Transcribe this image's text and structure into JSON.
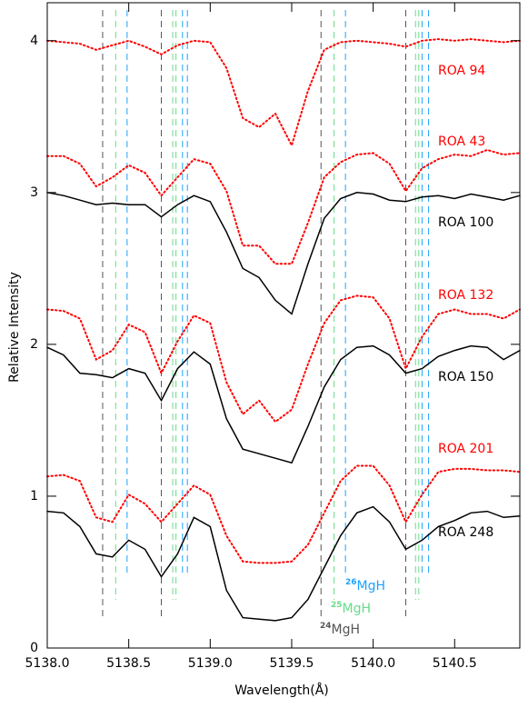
{
  "chart_data": {
    "type": "line",
    "x_label": "Wavelength(Å)",
    "y_label": "Relative Intensity",
    "xlim": [
      5138.0,
      5140.9
    ],
    "ylim": [
      0,
      4.25
    ],
    "xticks": [
      {
        "value": 5138.0,
        "label": "5138.0"
      },
      {
        "value": 5138.5,
        "label": "5138.5"
      },
      {
        "value": 5139.0,
        "label": "5139.0"
      },
      {
        "value": 5139.5,
        "label": "5139.5"
      },
      {
        "value": 5140.0,
        "label": "5140.0"
      },
      {
        "value": 5140.5,
        "label": "5140.5"
      }
    ],
    "yticks": [
      0,
      1,
      2,
      3,
      4
    ],
    "x": [
      5138.0,
      5138.1,
      5138.2,
      5138.3,
      5138.4,
      5138.5,
      5138.6,
      5138.7,
      5138.8,
      5138.9,
      5139.0,
      5139.1,
      5139.2,
      5139.3,
      5139.4,
      5139.5,
      5139.6,
      5139.7,
      5139.8,
      5139.9,
      5140.0,
      5140.1,
      5140.2,
      5140.3,
      5140.4,
      5140.5,
      5140.6,
      5140.7,
      5140.8,
      5140.9
    ],
    "series": [
      {
        "name": "ROA 94",
        "color": "#ff0000",
        "style": "dotted",
        "values": [
          4.0,
          3.99,
          3.98,
          3.94,
          3.97,
          4.0,
          3.96,
          3.91,
          3.97,
          4.0,
          3.99,
          3.82,
          3.49,
          3.43,
          3.52,
          3.31,
          3.67,
          3.94,
          3.99,
          4.0,
          3.99,
          3.98,
          3.96,
          4.0,
          4.01,
          4.0,
          4.01,
          4.0,
          3.99,
          4.0
        ]
      },
      {
        "name": "ROA 43",
        "color": "#ff0000",
        "style": "dotted",
        "values": [
          3.24,
          3.24,
          3.19,
          3.04,
          3.1,
          3.18,
          3.13,
          2.98,
          3.1,
          3.22,
          3.19,
          3.01,
          2.65,
          2.65,
          2.53,
          2.53,
          2.8,
          3.1,
          3.2,
          3.25,
          3.26,
          3.19,
          3.01,
          3.16,
          3.22,
          3.25,
          3.24,
          3.28,
          3.25,
          3.26
        ]
      },
      {
        "name": "ROA 100",
        "color": "#000000",
        "style": "solid",
        "values": [
          3.0,
          2.98,
          2.95,
          2.92,
          2.93,
          2.92,
          2.92,
          2.84,
          2.92,
          2.98,
          2.94,
          2.74,
          2.5,
          2.44,
          2.29,
          2.2,
          2.53,
          2.83,
          2.96,
          3.0,
          2.99,
          2.95,
          2.94,
          2.97,
          2.98,
          2.96,
          2.99,
          2.97,
          2.95,
          2.98
        ]
      },
      {
        "name": "ROA 132",
        "color": "#ff0000",
        "style": "dotted",
        "values": [
          2.23,
          2.22,
          2.17,
          1.9,
          1.96,
          2.13,
          2.08,
          1.81,
          2.02,
          2.19,
          2.14,
          1.75,
          1.54,
          1.63,
          1.49,
          1.57,
          1.87,
          2.14,
          2.29,
          2.32,
          2.31,
          2.17,
          1.84,
          2.05,
          2.2,
          2.23,
          2.2,
          2.2,
          2.17,
          2.23
        ]
      },
      {
        "name": "ROA 150",
        "color": "#000000",
        "style": "solid",
        "values": [
          1.98,
          1.93,
          1.81,
          1.8,
          1.78,
          1.84,
          1.81,
          1.63,
          1.84,
          1.95,
          1.87,
          1.51,
          1.31,
          1.28,
          1.25,
          1.22,
          1.46,
          1.72,
          1.9,
          1.98,
          1.99,
          1.93,
          1.81,
          1.84,
          1.92,
          1.96,
          1.99,
          1.98,
          1.9,
          1.96
        ]
      },
      {
        "name": "ROA 201",
        "color": "#ff0000",
        "style": "dotted",
        "values": [
          1.13,
          1.14,
          1.1,
          0.86,
          0.83,
          1.01,
          0.95,
          0.83,
          0.95,
          1.07,
          1.01,
          0.74,
          0.57,
          0.56,
          0.56,
          0.57,
          0.68,
          0.89,
          1.1,
          1.2,
          1.2,
          1.07,
          0.83,
          1.01,
          1.16,
          1.18,
          1.18,
          1.17,
          1.17,
          1.16
        ]
      },
      {
        "name": "ROA 248",
        "color": "#000000",
        "style": "solid",
        "values": [
          0.9,
          0.89,
          0.8,
          0.62,
          0.6,
          0.71,
          0.65,
          0.47,
          0.62,
          0.86,
          0.8,
          0.38,
          0.2,
          0.19,
          0.18,
          0.2,
          0.32,
          0.53,
          0.74,
          0.89,
          0.93,
          0.83,
          0.65,
          0.71,
          0.8,
          0.84,
          0.89,
          0.9,
          0.86,
          0.87
        ]
      }
    ],
    "markers": [
      {
        "sup": "26",
        "name": "MgH",
        "color": "#1aa3ff",
        "x": [
          5138.49,
          5138.83,
          5138.86,
          5139.83,
          5140.3,
          5140.34
        ]
      },
      {
        "sup": "25",
        "name": "MgH",
        "color": "#66dd88",
        "x": [
          5138.42,
          5138.77,
          5138.79,
          5139.76,
          5140.26,
          5140.28
        ]
      },
      {
        "sup": "24",
        "name": "MgH",
        "color": "#555555",
        "x": [
          5138.34,
          5138.7,
          5139.68,
          5140.2
        ]
      }
    ]
  }
}
